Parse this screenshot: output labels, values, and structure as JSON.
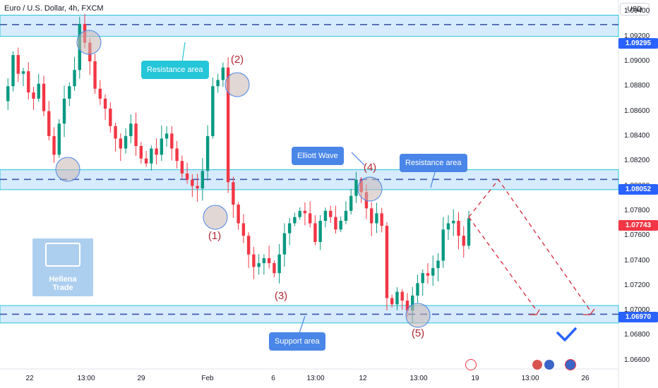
{
  "header": {
    "title": "Euro / U.S. Dollar, 4h, FXCM",
    "currency_button": "USD"
  },
  "levels": {
    "resistance_top": "1.09295",
    "resistance_mid": "1.08052",
    "last_price": "1.07743",
    "support": "1.06970"
  },
  "annotations": {
    "resistance_top_label": "Resistance area",
    "resistance_mid_label": "Resistance area",
    "elliott_label": "Elliott Wave",
    "support_label": "Support area",
    "waves": [
      "(1)",
      "(2)",
      "(3)",
      "(4)",
      "(5)"
    ]
  },
  "logo": {
    "line1": "Hellena",
    "line2": "Trade"
  },
  "colors": {
    "up": "#089981",
    "down": "#f23645",
    "zone_fill": "#bbdefb",
    "zone_border": "#2962ff",
    "callout_blue": "#4a86e8",
    "callout_teal": "#26c6da",
    "wave_label": "#b22833",
    "badge_blue": "#2962ff",
    "badge_red": "#f23645"
  },
  "chart_data": {
    "type": "candlestick",
    "title": "Euro / U.S. Dollar, 4h, FXCM",
    "ylim": [
      1.06531,
      1.09492
    ],
    "y_ticks": [
      "1.09400",
      "1.09200",
      "1.09000",
      "1.08800",
      "1.08600",
      "1.08400",
      "1.08200",
      "1.08000",
      "1.07800",
      "1.07600",
      "1.07400",
      "1.07200",
      "1.07000",
      "1.06800",
      "1.06600"
    ],
    "x_ticks": [
      "22",
      "13:00",
      "29",
      "Feb",
      "6",
      "13:00",
      "12",
      "13:00",
      "19",
      "13:00",
      "26"
    ],
    "zones": [
      {
        "name": "Resistance area",
        "from": 1.092,
        "to": 1.0937,
        "level": 1.09295
      },
      {
        "name": "Resistance area",
        "from": 1.0797,
        "to": 1.0813,
        "level": 1.08052
      },
      {
        "name": "Support area",
        "from": 1.069,
        "to": 1.0704,
        "level": 1.0697
      }
    ],
    "close_path": [
      1.0868,
      1.088,
      1.0905,
      1.089,
      1.0892,
      1.0875,
      1.087,
      1.0882,
      1.086,
      1.084,
      1.0825,
      1.085,
      1.087,
      1.088,
      1.0893,
      1.093,
      1.0915,
      1.09,
      1.0878,
      1.087,
      1.0862,
      1.0848,
      1.0838,
      1.083,
      1.084,
      1.085,
      1.0832,
      1.0822,
      1.0818,
      1.083,
      1.0825,
      1.0838,
      1.0842,
      1.083,
      1.082,
      1.081,
      1.0805,
      1.08,
      1.0798,
      1.0812,
      1.084,
      1.088,
      1.0885,
      1.0895,
      1.0803,
      1.0785,
      1.077,
      1.076,
      1.0745,
      1.0735,
      1.0738,
      1.0742,
      1.0738,
      1.073,
      1.0745,
      1.0762,
      1.077,
      1.0775,
      1.078,
      1.0778,
      1.077,
      1.0755,
      1.0772,
      1.078,
      1.0775,
      1.0765,
      1.0772,
      1.078,
      1.0792,
      1.0805,
      1.0795,
      1.0782,
      1.077,
      1.0778,
      1.0768,
      1.071,
      1.0705,
      1.0715,
      1.0708,
      1.07,
      1.0712,
      1.0722,
      1.073,
      1.0728,
      1.0734,
      1.074,
      1.0765,
      1.077,
      1.0772,
      1.076,
      1.0752,
      1.0774
    ],
    "projection": [
      [
        1.0775,
        1.0805,
        1.07
      ],
      [
        1.0775,
        1.07
      ]
    ]
  }
}
